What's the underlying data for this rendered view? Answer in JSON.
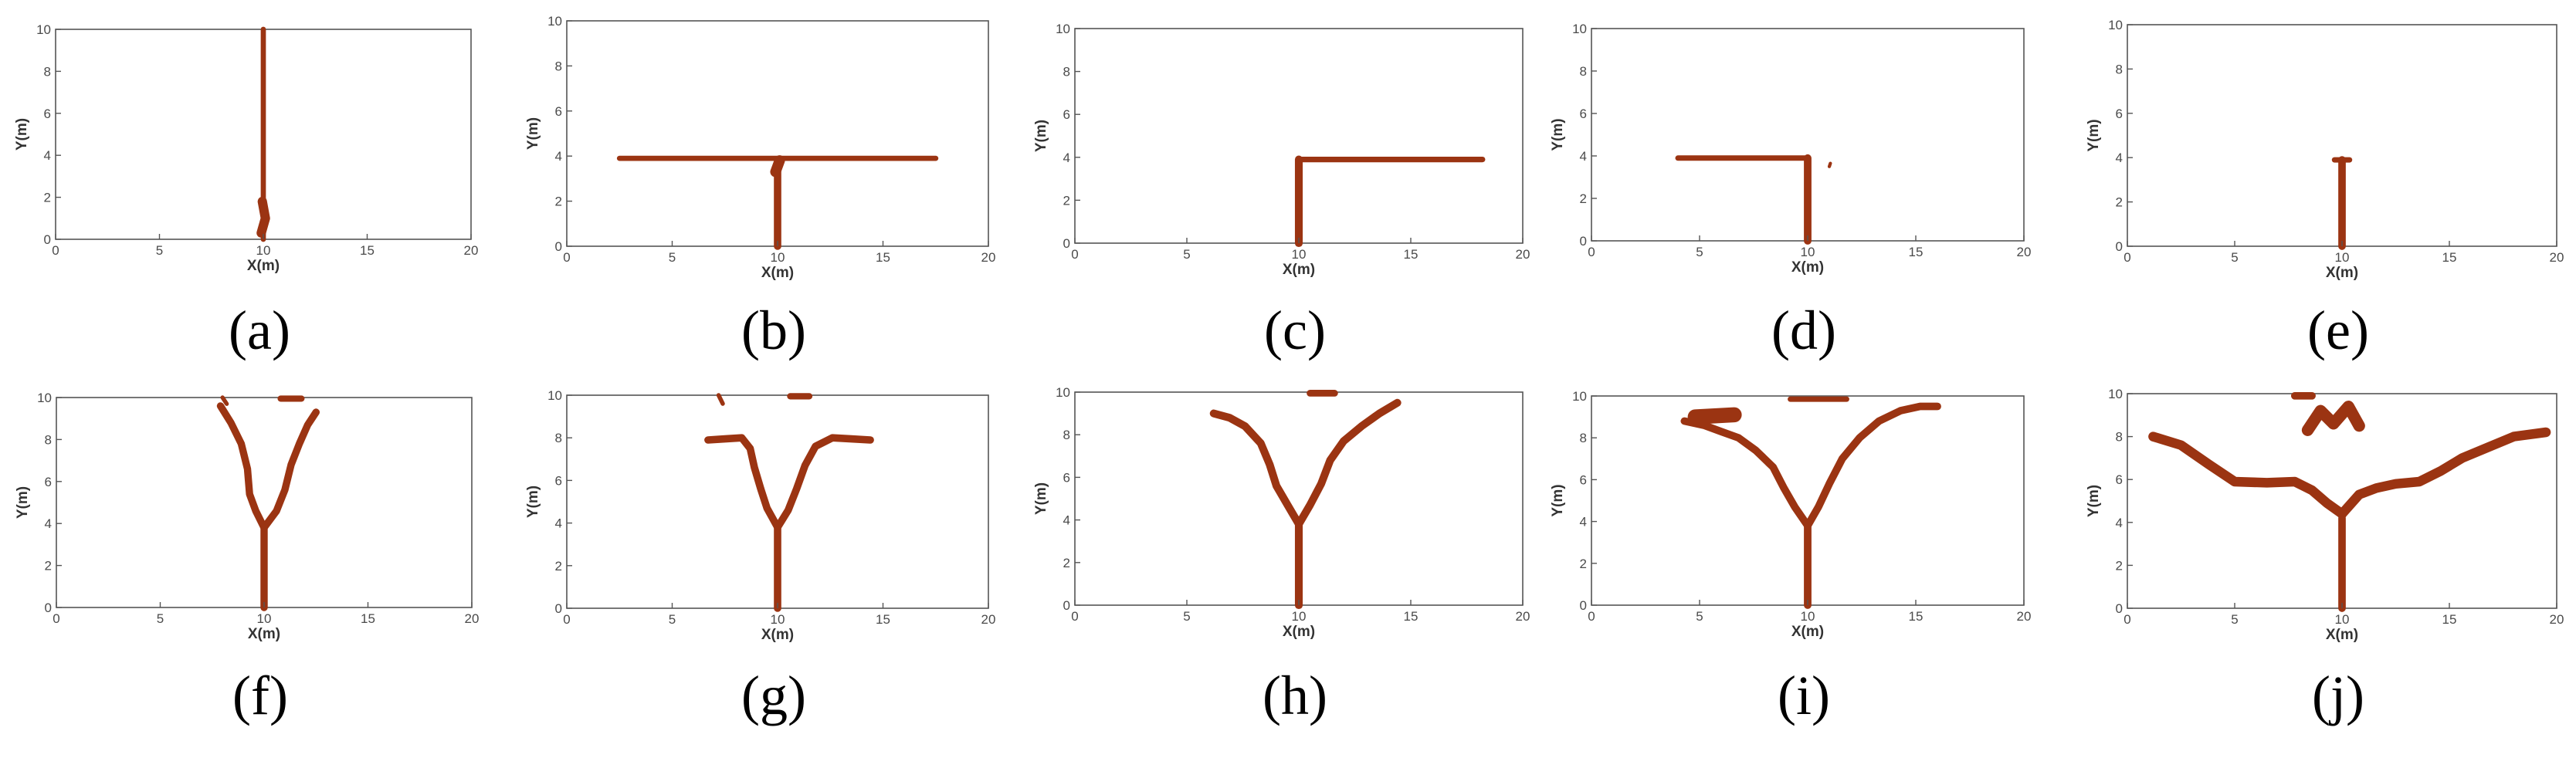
{
  "figure": {
    "panel_labels": [
      "(a)",
      "(b)",
      "(c)",
      "(d)",
      "(e)",
      "(f)",
      "(g)",
      "(h)",
      "(i)",
      "(j)"
    ]
  },
  "colors": {
    "fracture": "#9b3412",
    "axis": "#555555",
    "background": "#ffffff"
  },
  "chart_data": [
    {
      "type": "line",
      "label": "(a)",
      "xlabel": "X(m)",
      "ylabel": "Y(m)",
      "xlim": [
        0,
        20
      ],
      "ylim": [
        0,
        10
      ],
      "xticks": [
        0,
        5,
        10,
        15,
        20
      ],
      "yticks": [
        0,
        2,
        4,
        6,
        8,
        10
      ],
      "grid": false,
      "series": [
        {
          "width": 0.25,
          "x": [
            10,
            10
          ],
          "y": [
            0,
            10
          ]
        },
        {
          "width": 0.45,
          "x": [
            9.9,
            10.1,
            9.95
          ],
          "y": [
            0.3,
            1.0,
            1.8
          ]
        }
      ]
    },
    {
      "type": "line",
      "label": "(b)",
      "xlabel": "X(m)",
      "ylabel": "Y(m)",
      "xlim": [
        0,
        20
      ],
      "ylim": [
        0,
        10
      ],
      "xticks": [
        0,
        5,
        10,
        15,
        20
      ],
      "yticks": [
        0,
        2,
        4,
        6,
        8,
        10
      ],
      "grid": false,
      "series": [
        {
          "width": 0.35,
          "x": [
            10,
            10
          ],
          "y": [
            0,
            3.6
          ]
        },
        {
          "width": 0.25,
          "x": [
            2.5,
            17.5
          ],
          "y": [
            3.9,
            3.9
          ]
        },
        {
          "width": 0.5,
          "x": [
            9.9,
            10.1
          ],
          "y": [
            3.3,
            3.8
          ]
        }
      ]
    },
    {
      "type": "line",
      "label": "(c)",
      "xlabel": "X(m)",
      "ylabel": "Y(m)",
      "xlim": [
        0,
        20
      ],
      "ylim": [
        0,
        10
      ],
      "xticks": [
        0,
        5,
        10,
        15,
        20
      ],
      "yticks": [
        0,
        2,
        4,
        6,
        8,
        10
      ],
      "grid": false,
      "series": [
        {
          "width": 0.35,
          "x": [
            10,
            10
          ],
          "y": [
            0,
            3.9
          ]
        },
        {
          "width": 0.25,
          "x": [
            10,
            18.2
          ],
          "y": [
            3.9,
            3.9
          ]
        }
      ]
    },
    {
      "type": "line",
      "label": "(d)",
      "xlabel": "X(m)",
      "ylabel": "Y(m)",
      "xlim": [
        0,
        20
      ],
      "ylim": [
        0,
        10
      ],
      "xticks": [
        0,
        5,
        10,
        15,
        20
      ],
      "yticks": [
        0,
        2,
        4,
        6,
        8,
        10
      ],
      "grid": false,
      "series": [
        {
          "width": 0.35,
          "x": [
            10,
            10
          ],
          "y": [
            0,
            3.9
          ]
        },
        {
          "width": 0.25,
          "x": [
            4.0,
            10
          ],
          "y": [
            3.9,
            3.9
          ]
        },
        {
          "width": 0.15,
          "x": [
            11.0,
            11.05
          ],
          "y": [
            3.5,
            3.65
          ]
        }
      ]
    },
    {
      "type": "line",
      "label": "(e)",
      "xlabel": "X(m)",
      "ylabel": "Y(m)",
      "xlim": [
        0,
        20
      ],
      "ylim": [
        0,
        10
      ],
      "xticks": [
        0,
        5,
        10,
        15,
        20
      ],
      "yticks": [
        0,
        2,
        4,
        6,
        8,
        10
      ],
      "grid": false,
      "series": [
        {
          "width": 0.35,
          "x": [
            10,
            10
          ],
          "y": [
            0,
            3.9
          ]
        },
        {
          "width": 0.25,
          "x": [
            9.65,
            10.35
          ],
          "y": [
            3.9,
            3.9
          ]
        }
      ]
    },
    {
      "type": "line",
      "label": "(f)",
      "xlabel": "X(m)",
      "ylabel": "Y(m)",
      "xlim": [
        0,
        20
      ],
      "ylim": [
        0,
        10
      ],
      "xticks": [
        0,
        5,
        10,
        15,
        20
      ],
      "yticks": [
        0,
        2,
        4,
        6,
        8,
        10
      ],
      "grid": false,
      "series": [
        {
          "width": 0.35,
          "x": [
            10,
            10
          ],
          "y": [
            0,
            3.8
          ]
        },
        {
          "width": 0.35,
          "x": [
            10,
            9.6,
            9.3,
            9.2,
            8.9,
            8.4,
            7.9
          ],
          "y": [
            3.8,
            4.6,
            5.4,
            6.6,
            7.8,
            8.8,
            9.6
          ]
        },
        {
          "width": 0.35,
          "x": [
            10,
            10.6,
            11.0,
            11.3,
            11.7,
            12.1,
            12.5
          ],
          "y": [
            3.8,
            4.6,
            5.6,
            6.8,
            7.8,
            8.7,
            9.3
          ]
        },
        {
          "width": 0.3,
          "x": [
            10.8,
            11.8
          ],
          "y": [
            9.95,
            9.95
          ]
        },
        {
          "width": 0.2,
          "x": [
            8.0,
            8.2
          ],
          "y": [
            10,
            9.7
          ]
        }
      ]
    },
    {
      "type": "line",
      "label": "(g)",
      "xlabel": "X(m)",
      "ylabel": "Y(m)",
      "xlim": [
        0,
        20
      ],
      "ylim": [
        0,
        10
      ],
      "xticks": [
        0,
        5,
        10,
        15,
        20
      ],
      "yticks": [
        0,
        2,
        4,
        6,
        8,
        10
      ],
      "grid": false,
      "series": [
        {
          "width": 0.35,
          "x": [
            10,
            10
          ],
          "y": [
            0,
            3.8
          ]
        },
        {
          "width": 0.35,
          "x": [
            10,
            9.5,
            9.2,
            8.9,
            8.7,
            8.3,
            7.5,
            6.7
          ],
          "y": [
            3.8,
            4.7,
            5.6,
            6.6,
            7.5,
            8.0,
            7.95,
            7.9
          ]
        },
        {
          "width": 0.35,
          "x": [
            10,
            10.5,
            10.9,
            11.3,
            11.8,
            12.6,
            13.5,
            14.4
          ],
          "y": [
            3.8,
            4.6,
            5.6,
            6.7,
            7.6,
            8.0,
            7.95,
            7.9
          ]
        },
        {
          "width": 0.3,
          "x": [
            10.6,
            11.5
          ],
          "y": [
            9.95,
            9.95
          ]
        },
        {
          "width": 0.2,
          "x": [
            7.2,
            7.4
          ],
          "y": [
            10,
            9.6
          ]
        }
      ]
    },
    {
      "type": "line",
      "label": "(h)",
      "xlabel": "X(m)",
      "ylabel": "Y(m)",
      "xlim": [
        0,
        20
      ],
      "ylim": [
        0,
        10
      ],
      "xticks": [
        0,
        5,
        10,
        15,
        20
      ],
      "yticks": [
        0,
        2,
        4,
        6,
        8,
        10
      ],
      "grid": false,
      "series": [
        {
          "width": 0.35,
          "x": [
            10,
            10
          ],
          "y": [
            0,
            3.8
          ]
        },
        {
          "width": 0.35,
          "x": [
            10,
            9.5,
            9.0,
            8.7,
            8.3,
            7.6,
            6.9,
            6.2
          ],
          "y": [
            3.8,
            4.7,
            5.6,
            6.6,
            7.6,
            8.4,
            8.8,
            9.0
          ]
        },
        {
          "width": 0.35,
          "x": [
            10,
            10.5,
            11.0,
            11.4,
            12.0,
            12.8,
            13.6,
            14.4
          ],
          "y": [
            3.8,
            4.7,
            5.7,
            6.8,
            7.7,
            8.4,
            9.0,
            9.5
          ]
        },
        {
          "width": 0.3,
          "x": [
            10.5,
            11.6
          ],
          "y": [
            9.95,
            9.95
          ]
        }
      ]
    },
    {
      "type": "line",
      "label": "(i)",
      "xlabel": "X(m)",
      "ylabel": "Y(m)",
      "xlim": [
        0,
        20
      ],
      "ylim": [
        0,
        10
      ],
      "xticks": [
        0,
        5,
        10,
        15,
        20
      ],
      "yticks": [
        0,
        2,
        4,
        6,
        8,
        10
      ],
      "grid": false,
      "series": [
        {
          "width": 0.35,
          "x": [
            10,
            10
          ],
          "y": [
            0,
            3.8
          ]
        },
        {
          "width": 0.35,
          "x": [
            10,
            9.4,
            8.9,
            8.4,
            7.6,
            6.8,
            6.0,
            5.2,
            4.3
          ],
          "y": [
            3.8,
            4.7,
            5.6,
            6.6,
            7.4,
            8.0,
            8.3,
            8.6,
            8.8
          ]
        },
        {
          "width": 0.35,
          "x": [
            10,
            10.5,
            11.0,
            11.6,
            12.4,
            13.3,
            14.3,
            15.2,
            16.0
          ],
          "y": [
            3.8,
            4.7,
            5.8,
            7.0,
            8.0,
            8.8,
            9.3,
            9.5,
            9.5
          ]
        },
        {
          "width": 0.7,
          "x": [
            4.8,
            6.6
          ],
          "y": [
            9.0,
            9.1
          ]
        },
        {
          "width": 0.25,
          "x": [
            9.2,
            11.8
          ],
          "y": [
            9.85,
            9.85
          ]
        }
      ]
    },
    {
      "type": "line",
      "label": "(j)",
      "xlabel": "X(m)",
      "ylabel": "Y(m)",
      "xlim": [
        0,
        20
      ],
      "ylim": [
        0,
        10
      ],
      "xticks": [
        0,
        5,
        10,
        15,
        20
      ],
      "yticks": [
        0,
        2,
        4,
        6,
        8,
        10
      ],
      "grid": false,
      "series": [
        {
          "width": 0.35,
          "x": [
            10,
            10
          ],
          "y": [
            0,
            4.2
          ]
        },
        {
          "width": 0.45,
          "x": [
            1.2,
            2.5,
            3.8,
            5.0,
            6.5,
            7.8,
            8.6,
            9.3,
            10
          ],
          "y": [
            8.0,
            7.6,
            6.7,
            5.9,
            5.85,
            5.9,
            5.5,
            4.9,
            4.4
          ]
        },
        {
          "width": 0.45,
          "x": [
            10,
            10.8,
            11.6,
            12.5,
            13.6,
            14.6,
            15.6,
            16.8,
            18.0,
            19.5
          ],
          "y": [
            4.4,
            5.3,
            5.6,
            5.8,
            5.9,
            6.4,
            7.0,
            7.5,
            8.0,
            8.2
          ]
        },
        {
          "width": 0.55,
          "x": [
            8.4,
            9.0,
            9.6,
            10.3,
            10.8
          ],
          "y": [
            8.3,
            9.2,
            8.6,
            9.4,
            8.5
          ]
        },
        {
          "width": 0.35,
          "x": [
            7.8,
            8.6
          ],
          "y": [
            9.9,
            9.9
          ]
        }
      ]
    }
  ]
}
